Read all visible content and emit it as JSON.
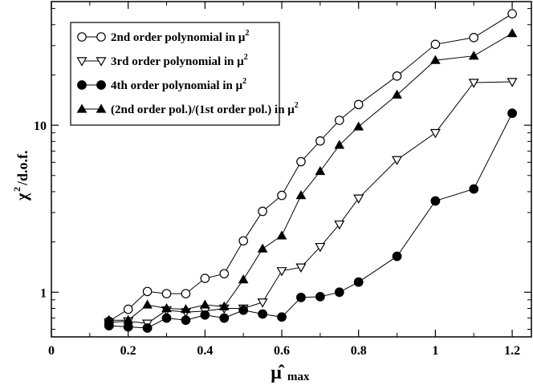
{
  "chart_data": {
    "type": "line",
    "xlabel": "μ̂",
    "xlabel_subscript": "max",
    "ylabel": "χ",
    "ylabel_superscript": "2",
    "ylabel_rest": "/d.o.f.",
    "xlim": [
      0,
      1.25
    ],
    "ylim": [
      0.54,
      55
    ],
    "yscale": "log",
    "xticks": [
      0,
      0.2,
      0.4,
      0.6,
      0.8,
      1,
      1.2
    ],
    "xtick_labels": [
      "0",
      "0.2",
      "0.4",
      "0.6",
      "0.8",
      "1",
      "1.2"
    ],
    "yticks": [
      1,
      10
    ],
    "ytick_labels": [
      "1",
      "10"
    ],
    "grid": false,
    "legend_position": "top-left",
    "series": [
      {
        "name": "2nd order polynomial in μ",
        "name_superscript": "2",
        "marker": "open-circle",
        "x": [
          0.15,
          0.2,
          0.25,
          0.3,
          0.35,
          0.4,
          0.45,
          0.5,
          0.55,
          0.6,
          0.65,
          0.7,
          0.75,
          0.8,
          0.9,
          1.0,
          1.1,
          1.2
        ],
        "y": [
          0.67,
          0.79,
          1.01,
          0.98,
          0.98,
          1.21,
          1.29,
          2.03,
          3.05,
          3.8,
          6.05,
          8.05,
          10.7,
          13.3,
          19.7,
          30.5,
          33.5,
          46.5
        ]
      },
      {
        "name": "3rd order polynomial in μ",
        "name_superscript": "2",
        "marker": "open-triangle-down",
        "x": [
          0.15,
          0.2,
          0.25,
          0.3,
          0.35,
          0.4,
          0.45,
          0.5,
          0.55,
          0.6,
          0.65,
          0.7,
          0.75,
          0.8,
          0.9,
          1.0,
          1.1,
          1.2
        ],
        "y": [
          0.66,
          0.67,
          0.65,
          0.78,
          0.76,
          0.77,
          0.8,
          0.8,
          0.87,
          1.34,
          1.41,
          1.87,
          2.55,
          3.65,
          6.2,
          9.0,
          18.0,
          18.2
        ]
      },
      {
        "name": "4th order polynomial in μ",
        "name_superscript": "2",
        "marker": "filled-circle",
        "x": [
          0.15,
          0.2,
          0.25,
          0.3,
          0.35,
          0.4,
          0.45,
          0.5,
          0.55,
          0.6,
          0.65,
          0.7,
          0.75,
          0.8,
          0.9,
          1.0,
          1.1,
          1.2
        ],
        "y": [
          0.63,
          0.62,
          0.61,
          0.7,
          0.68,
          0.73,
          0.7,
          0.78,
          0.74,
          0.71,
          0.93,
          0.94,
          1.0,
          1.15,
          1.64,
          3.52,
          4.15,
          11.8
        ]
      },
      {
        "name": "(2nd order pol.)/(1st order pol.) in μ",
        "name_superscript": "2",
        "marker": "filled-triangle-up",
        "x": [
          0.15,
          0.2,
          0.25,
          0.3,
          0.35,
          0.4,
          0.45,
          0.5,
          0.55,
          0.6,
          0.65,
          0.7,
          0.75,
          0.8,
          0.9,
          1.0,
          1.1,
          1.2
        ],
        "y": [
          0.68,
          0.68,
          0.84,
          0.8,
          0.79,
          0.84,
          0.82,
          1.19,
          1.82,
          2.18,
          3.8,
          5.3,
          7.6,
          9.8,
          15.2,
          24.5,
          26.0,
          35.5
        ]
      }
    ]
  }
}
